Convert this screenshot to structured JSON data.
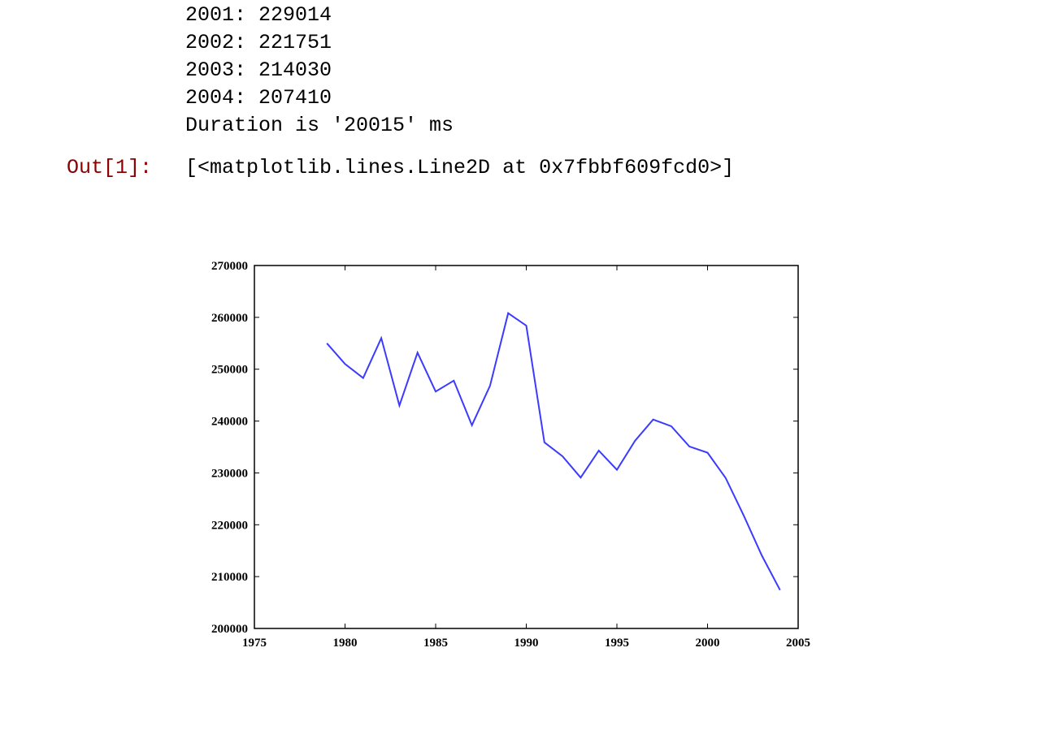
{
  "stdout_lines": [
    "2001: 229014",
    "2002: 221751",
    "2003: 214030",
    "2004: 207410",
    "Duration is '20015' ms"
  ],
  "output": {
    "prompt": "Out[1]:",
    "value": "[<matplotlib.lines.Line2D at 0x7fbbf609fcd0>]"
  },
  "chart_data": {
    "type": "line",
    "title": "",
    "xlabel": "",
    "ylabel": "",
    "xlim": [
      1975,
      2005
    ],
    "ylim": [
      200000,
      270000
    ],
    "x_ticks": [
      1975,
      1980,
      1985,
      1990,
      1995,
      2000,
      2005
    ],
    "y_ticks": [
      200000,
      210000,
      220000,
      230000,
      240000,
      250000,
      260000,
      270000
    ],
    "grid": false,
    "line_color": "#3b3bff",
    "series": [
      {
        "x": [
          1979,
          1980,
          1981,
          1982,
          1983,
          1984,
          1985,
          1986,
          1987,
          1988,
          1989,
          1990,
          1991,
          1992,
          1993,
          1994,
          1995,
          1996,
          1997,
          1998,
          1999,
          2000,
          2001,
          2002,
          2003,
          2004
        ],
        "values": [
          255000,
          251000,
          248300,
          256000,
          243000,
          253200,
          245700,
          247800,
          239200,
          246800,
          260800,
          258400,
          235900,
          233200,
          229100,
          234300,
          230600,
          236200,
          240300,
          239000,
          235100,
          233900,
          229014,
          221751,
          214030,
          207410
        ]
      }
    ]
  }
}
